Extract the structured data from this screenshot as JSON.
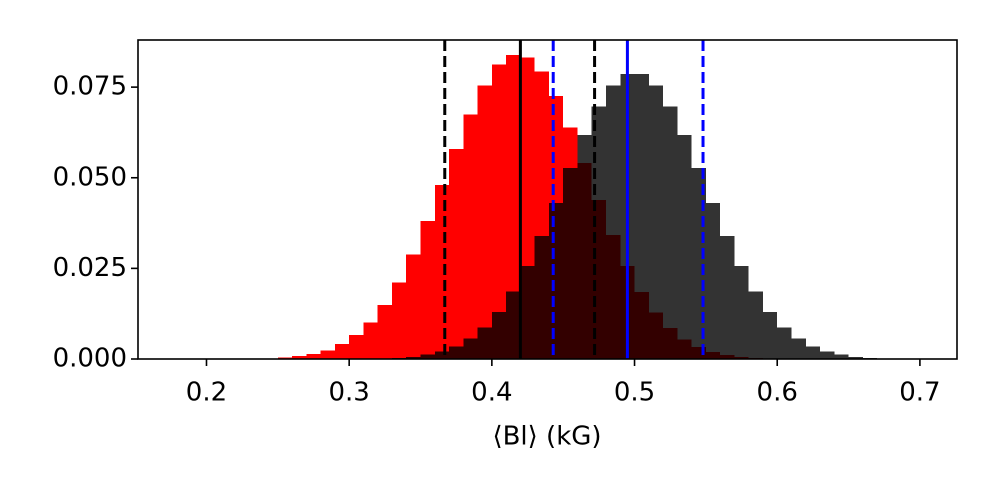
{
  "chart_data": {
    "type": "histogram",
    "xlabel": "⟨Bl⟩ (kG)",
    "bins": [
      0.2,
      0.21,
      0.22,
      0.23,
      0.24,
      0.25,
      0.26,
      0.27,
      0.28,
      0.29,
      0.3,
      0.31,
      0.32,
      0.33,
      0.34,
      0.35,
      0.36,
      0.37,
      0.38,
      0.39,
      0.4,
      0.41,
      0.42,
      0.43,
      0.44,
      0.45,
      0.46,
      0.47,
      0.48,
      0.49,
      0.5,
      0.51,
      0.52,
      0.53,
      0.54,
      0.55,
      0.56,
      0.57,
      0.58,
      0.59,
      0.6,
      0.61,
      0.62,
      0.63,
      0.64,
      0.65,
      0.66,
      0.67,
      0.68,
      0.69,
      0.7
    ],
    "series": [
      {
        "color": "#ff0000",
        "alpha": 1,
        "values": [
          0,
          0,
          0.0001,
          0.0001,
          0.0002,
          0.0004,
          0.0008,
          0.0014,
          0.0024,
          0.0041,
          0.0066,
          0.0101,
          0.0149,
          0.0211,
          0.0288,
          0.0381,
          0.048,
          0.058,
          0.0674,
          0.0755,
          0.0812,
          0.0838,
          0.0832,
          0.0793,
          0.0726,
          0.0639,
          0.0541,
          0.0439,
          0.0342,
          0.0256,
          0.0185,
          0.0128,
          0.0085,
          0.0054,
          0.0033,
          0.002,
          0.0011,
          0.0006,
          0.0003,
          0.0002,
          0.0001,
          0,
          0,
          0,
          0,
          0,
          0,
          0,
          0,
          0
        ]
      },
      {
        "color": "#000000",
        "alpha": 0.8,
        "values": [
          0,
          0,
          0,
          0,
          0,
          0,
          0,
          0,
          0,
          0,
          0,
          0.0001,
          0.0002,
          0.0003,
          0.0006,
          0.0012,
          0.0021,
          0.0035,
          0.0056,
          0.0087,
          0.013,
          0.0186,
          0.0256,
          0.0339,
          0.0431,
          0.0527,
          0.0618,
          0.0697,
          0.0755,
          0.0786,
          0.0786,
          0.0755,
          0.0697,
          0.0618,
          0.0527,
          0.0431,
          0.0339,
          0.0256,
          0.0186,
          0.013,
          0.0087,
          0.0056,
          0.0035,
          0.0021,
          0.0012,
          0.0006,
          0.0003,
          0.0002,
          0.0001,
          0.0001
        ]
      }
    ],
    "vlines": [
      {
        "x": 0.367,
        "color": "#000000",
        "style": "dashed"
      },
      {
        "x": 0.42,
        "color": "#000000",
        "style": "solid"
      },
      {
        "x": 0.472,
        "color": "#000000",
        "style": "dashed"
      },
      {
        "x": 0.443,
        "color": "#0000ff",
        "style": "dashed"
      },
      {
        "x": 0.495,
        "color": "#0000ff",
        "style": "solid"
      },
      {
        "x": 0.548,
        "color": "#0000ff",
        "style": "dashed"
      }
    ],
    "xlim": [
      0.152,
      0.726
    ],
    "ylim": [
      0,
      0.088
    ],
    "xticks": [
      0.2,
      0.3,
      0.4,
      0.5,
      0.6,
      0.7
    ],
    "yticks": [
      {
        "value": 0,
        "label": "0.000"
      },
      0.025,
      {
        "value": 0.05,
        "label": "0.050"
      },
      0.075
    ],
    "grid": false
  }
}
